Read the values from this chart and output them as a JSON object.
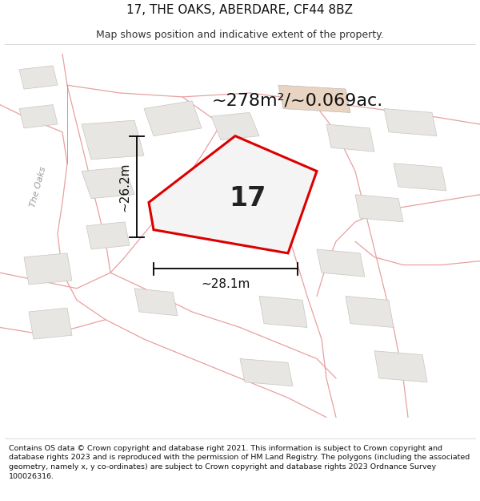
{
  "title": "17, THE OAKS, ABERDARE, CF44 8BZ",
  "subtitle": "Map shows position and indicative extent of the property.",
  "area_label": "~278m²/~0.069ac.",
  "dim_vertical": "~26.2m",
  "dim_horizontal": "~28.1m",
  "plot_number": "17",
  "road_label": "The Oaks",
  "footer": "Contains OS data © Crown copyright and database right 2021. This information is subject to Crown copyright and database rights 2023 and is reproduced with the permission of HM Land Registry. The polygons (including the associated geometry, namely x, y co-ordinates) are subject to Crown copyright and database rights 2023 Ordnance Survey 100026316.",
  "map_bg": "#ffffff",
  "plot_fill": "#f4f4f4",
  "plot_edge": "#dd0000",
  "road_color": "#e8a0a0",
  "road_color2": "#d08080",
  "building_fill": "#e8e6e3",
  "building_edge": "#c8c4c0",
  "tan_fill": "#e8d4c0",
  "title_fontsize": 11,
  "subtitle_fontsize": 9,
  "footer_fontsize": 6.8,
  "area_fontsize": 16,
  "dim_fontsize": 11,
  "plot_label_fontsize": 24,
  "road_label_fontsize": 8
}
